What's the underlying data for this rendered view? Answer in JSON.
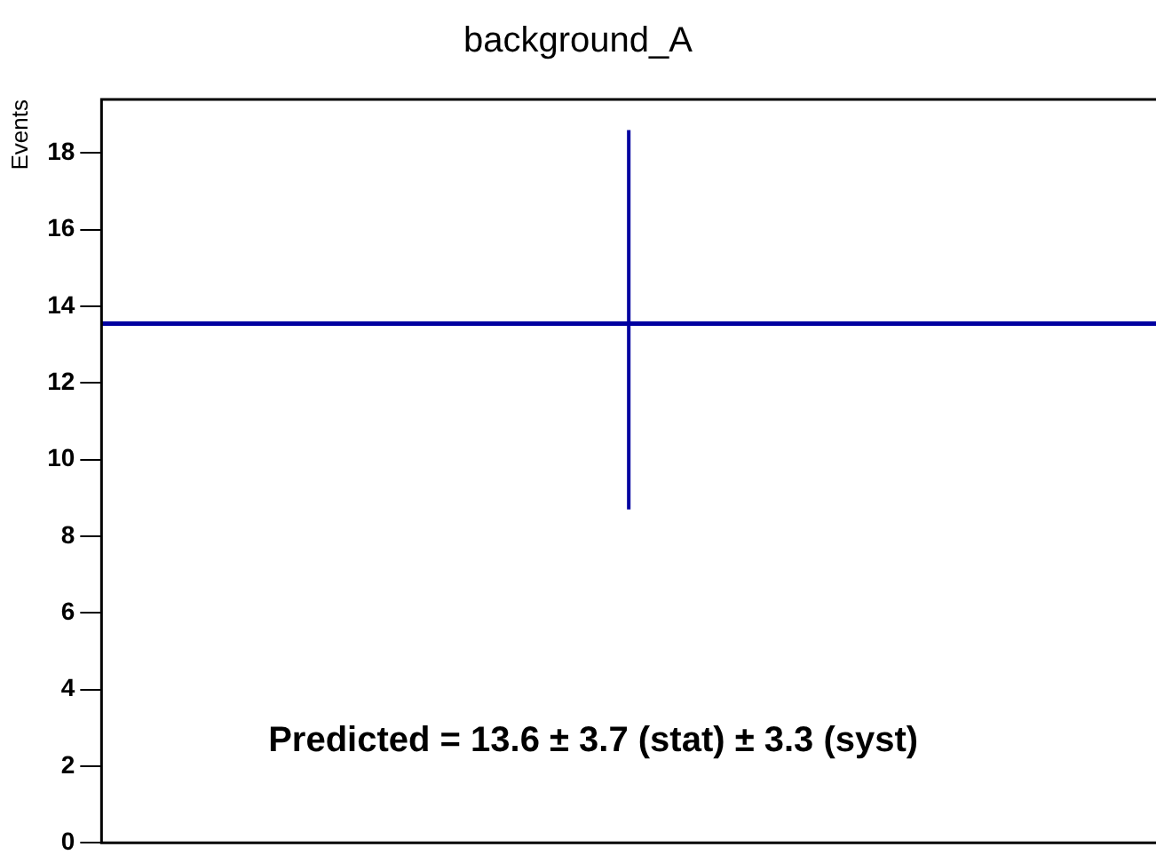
{
  "chart_data": {
    "type": "bar",
    "title": "background_A",
    "ylabel": "Events",
    "categories": [
      null
    ],
    "series": [
      {
        "color": "#0000a0",
        "values": [
          13.6
        ],
        "errors": [
          [
            8.7,
            18.6
          ]
        ]
      }
    ],
    "ylim": [
      0,
      19.4
    ],
    "yticks": [
      0,
      2,
      4,
      6,
      8,
      10,
      12,
      14,
      16,
      18
    ],
    "tick_labels": "y",
    "grid": false,
    "legend": false,
    "annotations": [
      "Predicted = 13.6 ± 3.7 (stat) ± 3.3 (syst)"
    ]
  }
}
